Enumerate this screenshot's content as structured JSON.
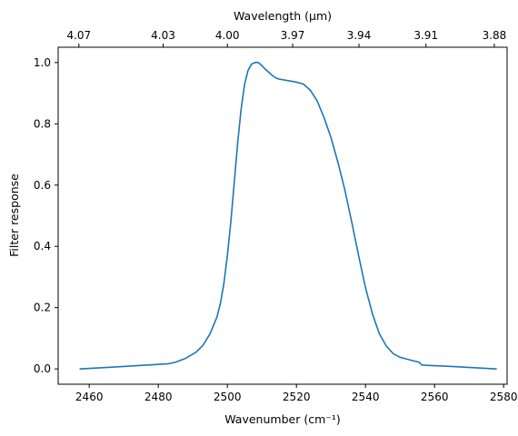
{
  "chart_data": {
    "type": "line",
    "xlabel": "Wavenumber (cm⁻¹)",
    "ylabel": "Filter response",
    "x2label": "Wavelength (μm)",
    "xlim": [
      2451,
      2581
    ],
    "ylim": [
      -0.05,
      1.05
    ],
    "xticks": [
      2460,
      2480,
      2500,
      2520,
      2540,
      2560,
      2580
    ],
    "yticks": [
      0.0,
      0.2,
      0.4,
      0.6,
      0.8,
      1.0
    ],
    "ytick_labels": [
      "0.0",
      "0.2",
      "0.4",
      "0.6",
      "0.8",
      "1.0"
    ],
    "top_axis": {
      "ticks": [
        {
          "label": "4.07",
          "wavenumber": 2457.0
        },
        {
          "label": "4.03",
          "wavenumber": 2481.4
        },
        {
          "label": "4.00",
          "wavenumber": 2500.0
        },
        {
          "label": "3.97",
          "wavenumber": 2518.9
        },
        {
          "label": "3.94",
          "wavenumber": 2538.1
        },
        {
          "label": "3.91",
          "wavenumber": 2557.5
        },
        {
          "label": "3.88",
          "wavenumber": 2577.3
        }
      ]
    },
    "grid": false,
    "series": [
      {
        "color": "#1f77b4",
        "x": [
          2457.2,
          2470,
          2483,
          2485,
          2488,
          2491,
          2493,
          2495,
          2497,
          2498,
          2499,
          2500,
          2501,
          2502,
          2503,
          2504,
          2505,
          2506,
          2507,
          2508,
          2509,
          2510,
          2511,
          2512,
          2513,
          2514,
          2515,
          2516,
          2518,
          2520,
          2522,
          2524,
          2526,
          2528,
          2530,
          2532,
          2534,
          2536,
          2538,
          2540,
          2542,
          2544,
          2546,
          2548,
          2550,
          2552,
          2554,
          2555.5,
          2556,
          2556.3,
          2557,
          2565,
          2578
        ],
        "y": [
          0.0,
          0.008,
          0.017,
          0.022,
          0.035,
          0.055,
          0.078,
          0.115,
          0.17,
          0.215,
          0.28,
          0.37,
          0.48,
          0.61,
          0.74,
          0.85,
          0.93,
          0.975,
          0.995,
          1.0,
          1.0,
          0.99,
          0.978,
          0.968,
          0.958,
          0.95,
          0.946,
          0.944,
          0.94,
          0.936,
          0.93,
          0.91,
          0.875,
          0.82,
          0.755,
          0.675,
          0.585,
          0.48,
          0.37,
          0.265,
          0.18,
          0.115,
          0.075,
          0.05,
          0.038,
          0.032,
          0.026,
          0.022,
          0.016,
          0.013,
          0.012,
          0.008,
          0.0
        ]
      }
    ]
  }
}
